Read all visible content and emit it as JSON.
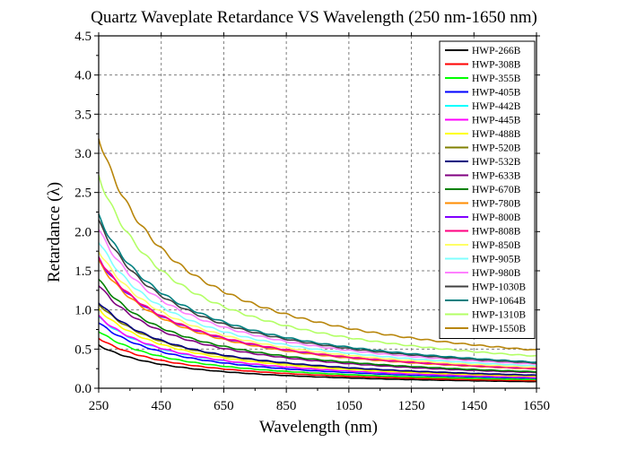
{
  "chart_data": {
    "type": "line",
    "title": "Quartz Waveplate Retardance VS Wavelength (250 nm-1650 nm)",
    "xlabel": "Wavelength (nm)",
    "ylabel": "Retardance (λ)",
    "xlim": [
      250,
      1650
    ],
    "ylim": [
      0.0,
      4.5
    ],
    "xticks": [
      "250",
      "450",
      "650",
      "850",
      "1050",
      "1250",
      "1450",
      "1650"
    ],
    "yticks": [
      "0.0",
      "0.5",
      "1.0",
      "1.5",
      "2.0",
      "2.5",
      "3.0",
      "3.5",
      "4.0",
      "4.5"
    ],
    "grid": true,
    "legend_position": "top-right",
    "series": [
      {
        "name": "HWP-266B",
        "color": "#000000",
        "values_at_250": 0.55,
        "design_nm": 266
      },
      {
        "name": "HWP-308B",
        "color": "#ff0000",
        "values_at_250": 0.64,
        "design_nm": 308
      },
      {
        "name": "HWP-355B",
        "color": "#00ff00",
        "values_at_250": 0.73,
        "design_nm": 355
      },
      {
        "name": "HWP-405B",
        "color": "#0000ff",
        "values_at_250": 0.84,
        "design_nm": 405
      },
      {
        "name": "HWP-442B",
        "color": "#00ffff",
        "values_at_250": 0.91,
        "design_nm": 442
      },
      {
        "name": "HWP-445B",
        "color": "#ff00ff",
        "values_at_250": 0.92,
        "design_nm": 445
      },
      {
        "name": "HWP-488B",
        "color": "#ffff00",
        "values_at_250": 1.01,
        "design_nm": 488
      },
      {
        "name": "HWP-520B",
        "color": "#808000",
        "values_at_250": 1.08,
        "design_nm": 520
      },
      {
        "name": "HWP-532B",
        "color": "#000080",
        "values_at_250": 1.1,
        "design_nm": 532
      },
      {
        "name": "HWP-633B",
        "color": "#800080",
        "values_at_250": 1.32,
        "design_nm": 633
      },
      {
        "name": "HWP-670B",
        "color": "#008000",
        "values_at_250": 1.39,
        "design_nm": 670
      },
      {
        "name": "HWP-780B",
        "color": "#ff8c00",
        "values_at_250": 1.62,
        "design_nm": 780
      },
      {
        "name": "HWP-800B",
        "color": "#8000ff",
        "values_at_250": 1.66,
        "design_nm": 800
      },
      {
        "name": "HWP-808B",
        "color": "#ff0080",
        "values_at_250": 1.67,
        "design_nm": 808
      },
      {
        "name": "HWP-850B",
        "color": "#ffff66",
        "values_at_250": 1.76,
        "design_nm": 850
      },
      {
        "name": "HWP-905B",
        "color": "#80ffff",
        "values_at_250": 1.88,
        "design_nm": 905
      },
      {
        "name": "HWP-980B",
        "color": "#ff80ff",
        "values_at_250": 2.03,
        "design_nm": 980
      },
      {
        "name": "HWP-1030B",
        "color": "#404040",
        "values_at_250": 2.13,
        "design_nm": 1030
      },
      {
        "name": "HWP-1064B",
        "color": "#008080",
        "values_at_250": 2.2,
        "design_nm": 1064
      },
      {
        "name": "HWP-1310B",
        "color": "#b3ff66",
        "values_at_250": 2.71,
        "design_nm": 1310
      },
      {
        "name": "HWP-1550B",
        "color": "#b8860b",
        "values_at_250": 3.21,
        "design_nm": 1550
      }
    ]
  }
}
